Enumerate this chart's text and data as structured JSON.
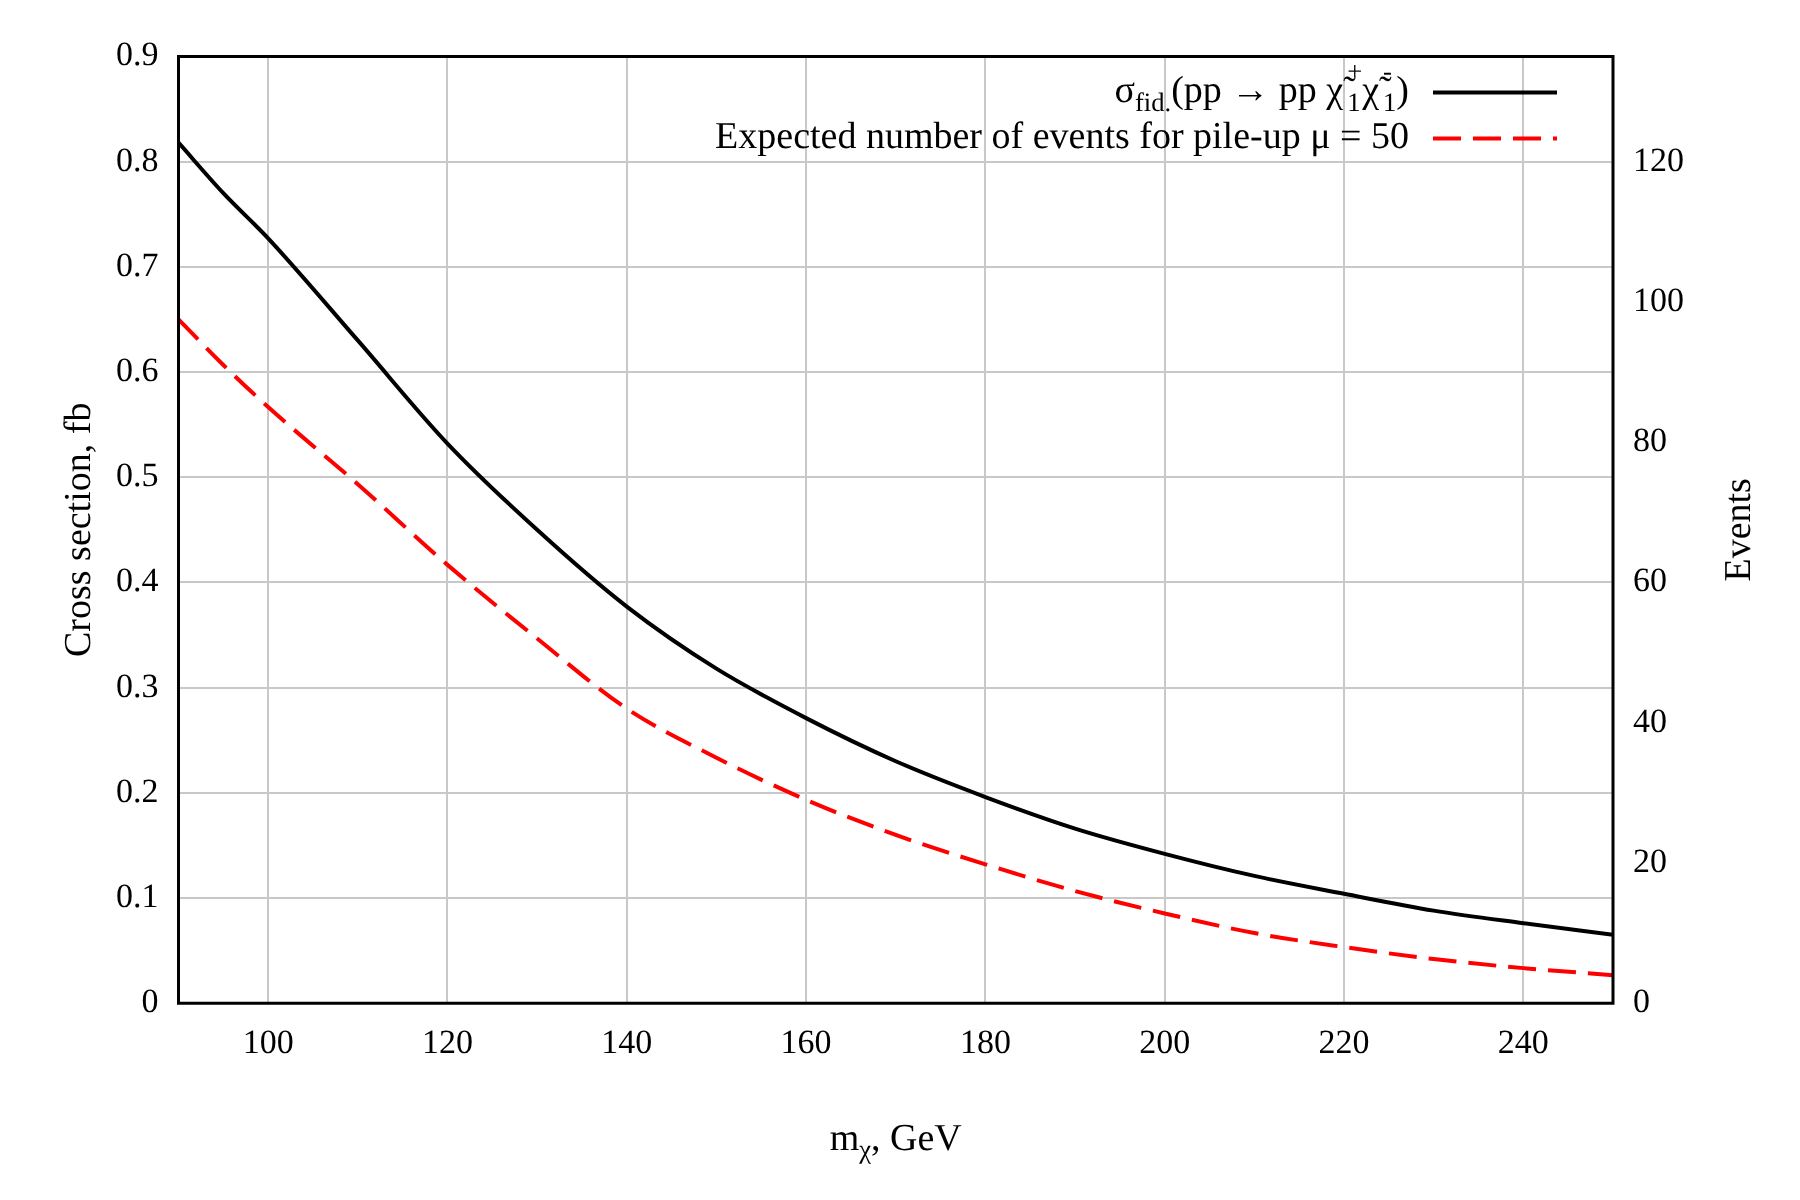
{
  "chart_data": {
    "type": "line",
    "xlabel": "m$_{χ}$, GeV",
    "ylabel": "Cross section, fb",
    "y2label": "Events",
    "x": [
      90,
      95,
      100,
      110,
      120,
      130,
      140,
      150,
      160,
      170,
      180,
      190,
      200,
      210,
      220,
      230,
      240,
      250
    ],
    "series": [
      {
        "name": "σ$_{fid.}$(pp → pp χ̃$^{+}$$_{1}$χ̃$^{-}$$_{1}$)",
        "color": "#000000",
        "line_style": "solid",
        "values": [
          0.818,
          0.77,
          0.727,
          0.63,
          0.532,
          0.45,
          0.377,
          0.318,
          0.271,
          0.23,
          0.196,
          0.166,
          0.142,
          0.121,
          0.104,
          0.088,
          0.076,
          0.065
        ]
      },
      {
        "name": "Expected number of events for pile-up μ = 50",
        "color": "#ff0000",
        "line_style": "dashed",
        "axis": "y2",
        "values": [
          97.5,
          91,
          85,
          74,
          62.5,
          52,
          42,
          35,
          29,
          24,
          19.8,
          16,
          12.8,
          10,
          8,
          6.3,
          5,
          4
        ]
      }
    ],
    "xlim": [
      90,
      250
    ],
    "xticks": [
      100,
      120,
      140,
      160,
      180,
      200,
      220,
      240
    ],
    "ylim": [
      0,
      0.9
    ],
    "yticks": [
      0,
      0.1,
      0.2,
      0.3,
      0.4,
      0.5,
      0.6,
      0.7,
      0.8,
      0.9
    ],
    "y2lim": [
      0,
      135
    ],
    "y2ticks": [
      0,
      20,
      40,
      60,
      80,
      100,
      120
    ],
    "grid": true,
    "legend": "top right",
    "marker": "none"
  }
}
